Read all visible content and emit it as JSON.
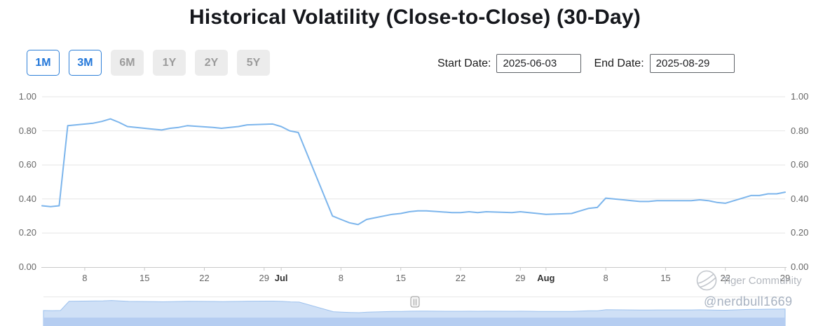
{
  "page": {
    "title": "Historical Volatility (Close-to-Close) (30-Day)"
  },
  "controls": {
    "range_buttons": [
      {
        "label": "1M",
        "active": true
      },
      {
        "label": "3M",
        "active": true
      },
      {
        "label": "6M",
        "active": false
      },
      {
        "label": "1Y",
        "active": false
      },
      {
        "label": "2Y",
        "active": false
      },
      {
        "label": "5Y",
        "active": false
      }
    ],
    "start_date": {
      "label": "Start Date:",
      "value": "2025-06-03"
    },
    "end_date": {
      "label": "End Date:",
      "value": "2025-08-29"
    }
  },
  "watermark": {
    "brand": "Tiger Community",
    "handle": "@nerdbull1669"
  },
  "chart_data": {
    "type": "line",
    "title": "Historical Volatility (Close-to-Close) (30-Day)",
    "x_range": [
      "2025-06-03",
      "2025-08-29"
    ],
    "ylim": [
      0,
      1.0
    ],
    "y_ticks": [
      0,
      0.2,
      0.4,
      0.6,
      0.8,
      1.0
    ],
    "grid": true,
    "y_axis_sides": [
      "left",
      "right"
    ],
    "x_ticks": [
      {
        "date": "2025-06-08",
        "label": "8",
        "bold": false
      },
      {
        "date": "2025-06-15",
        "label": "15",
        "bold": false
      },
      {
        "date": "2025-06-22",
        "label": "22",
        "bold": false
      },
      {
        "date": "2025-06-29",
        "label": "29",
        "bold": false
      },
      {
        "date": "2025-07-01",
        "label": "Jul",
        "bold": true
      },
      {
        "date": "2025-07-08",
        "label": "8",
        "bold": false
      },
      {
        "date": "2025-07-15",
        "label": "15",
        "bold": false
      },
      {
        "date": "2025-07-22",
        "label": "22",
        "bold": false
      },
      {
        "date": "2025-07-29",
        "label": "29",
        "bold": false
      },
      {
        "date": "2025-08-01",
        "label": "Aug",
        "bold": true
      },
      {
        "date": "2025-08-08",
        "label": "8",
        "bold": false
      },
      {
        "date": "2025-08-15",
        "label": "15",
        "bold": false
      },
      {
        "date": "2025-08-22",
        "label": "22",
        "bold": false
      },
      {
        "date": "2025-08-29",
        "label": "29",
        "bold": false
      }
    ],
    "navigator": {
      "fill": "#cfe0f6",
      "line": "#9ec2ee",
      "strip": "#b5cdf1"
    },
    "series": [
      {
        "name": "30-Day Historical Volatility (Close-to-Close)",
        "color": "#7cb5ec",
        "points": [
          [
            "2025-06-03",
            0.36
          ],
          [
            "2025-06-04",
            0.355
          ],
          [
            "2025-06-05",
            0.36
          ],
          [
            "2025-06-06",
            0.83
          ],
          [
            "2025-06-09",
            0.845
          ],
          [
            "2025-06-10",
            0.855
          ],
          [
            "2025-06-11",
            0.87
          ],
          [
            "2025-06-12",
            0.85
          ],
          [
            "2025-06-13",
            0.825
          ],
          [
            "2025-06-16",
            0.81
          ],
          [
            "2025-06-17",
            0.805
          ],
          [
            "2025-06-18",
            0.815
          ],
          [
            "2025-06-19",
            0.82
          ],
          [
            "2025-06-20",
            0.83
          ],
          [
            "2025-06-23",
            0.82
          ],
          [
            "2025-06-24",
            0.815
          ],
          [
            "2025-06-25",
            0.82
          ],
          [
            "2025-06-26",
            0.825
          ],
          [
            "2025-06-27",
            0.835
          ],
          [
            "2025-06-30",
            0.84
          ],
          [
            "2025-07-01",
            0.825
          ],
          [
            "2025-07-02",
            0.8
          ],
          [
            "2025-07-03",
            0.79
          ],
          [
            "2025-07-07",
            0.3
          ],
          [
            "2025-07-08",
            0.28
          ],
          [
            "2025-07-09",
            0.26
          ],
          [
            "2025-07-10",
            0.25
          ],
          [
            "2025-07-11",
            0.28
          ],
          [
            "2025-07-14",
            0.31
          ],
          [
            "2025-07-15",
            0.315
          ],
          [
            "2025-07-16",
            0.325
          ],
          [
            "2025-07-17",
            0.33
          ],
          [
            "2025-07-18",
            0.33
          ],
          [
            "2025-07-21",
            0.32
          ],
          [
            "2025-07-22",
            0.32
          ],
          [
            "2025-07-23",
            0.325
          ],
          [
            "2025-07-24",
            0.32
          ],
          [
            "2025-07-25",
            0.325
          ],
          [
            "2025-07-28",
            0.32
          ],
          [
            "2025-07-29",
            0.325
          ],
          [
            "2025-07-30",
            0.32
          ],
          [
            "2025-07-31",
            0.315
          ],
          [
            "2025-08-01",
            0.31
          ],
          [
            "2025-08-04",
            0.315
          ],
          [
            "2025-08-05",
            0.33
          ],
          [
            "2025-08-06",
            0.345
          ],
          [
            "2025-08-07",
            0.35
          ],
          [
            "2025-08-08",
            0.405
          ],
          [
            "2025-08-11",
            0.39
          ],
          [
            "2025-08-12",
            0.385
          ],
          [
            "2025-08-13",
            0.385
          ],
          [
            "2025-08-14",
            0.39
          ],
          [
            "2025-08-15",
            0.39
          ],
          [
            "2025-08-18",
            0.39
          ],
          [
            "2025-08-19",
            0.395
          ],
          [
            "2025-08-20",
            0.39
          ],
          [
            "2025-08-21",
            0.38
          ],
          [
            "2025-08-22",
            0.375
          ],
          [
            "2025-08-25",
            0.42
          ],
          [
            "2025-08-26",
            0.42
          ],
          [
            "2025-08-27",
            0.43
          ],
          [
            "2025-08-28",
            0.43
          ],
          [
            "2025-08-29",
            0.44
          ]
        ]
      }
    ]
  }
}
